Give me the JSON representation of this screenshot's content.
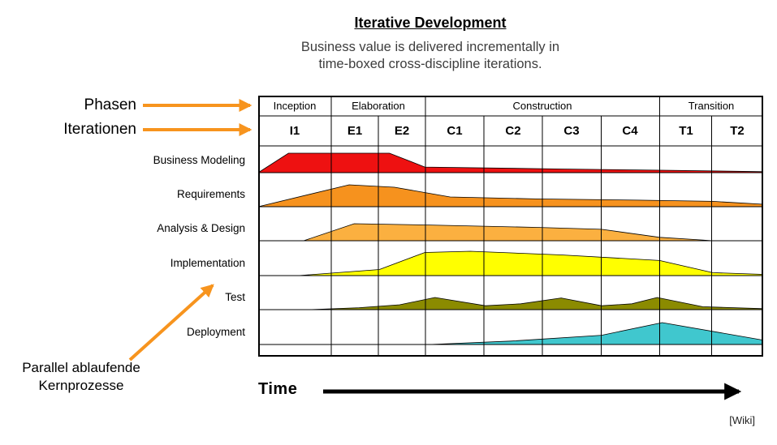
{
  "header": {
    "title": "Iterative Development",
    "subtitle_line1": "Business value is delivered incrementally in",
    "subtitle_line2": "time-boxed cross-discipline iterations."
  },
  "annotations": {
    "phases_label": "Phasen",
    "iterations_label": "Iterationen",
    "parallel_line1": "Parallel ablaufende",
    "parallel_line2": "Kernprozesse",
    "arrow_color": "#F7941E"
  },
  "footer": {
    "time_label": "Time",
    "credit": "[Wiki]"
  },
  "chart_data": {
    "type": "area",
    "title": "Iterative Development",
    "xlabel": "Time",
    "ylabel": "",
    "value_units": "relative effort (0 = none, 100 = max)",
    "column_boundaries": [
      0,
      0.145,
      0.238,
      0.331,
      0.447,
      0.563,
      0.679,
      0.795,
      0.898,
      1
    ],
    "phases": [
      {
        "label": "Inception",
        "start_col": 0,
        "end_col": 1
      },
      {
        "label": "Elaboration",
        "start_col": 1,
        "end_col": 3
      },
      {
        "label": "Construction",
        "start_col": 3,
        "end_col": 7
      },
      {
        "label": "Transition",
        "start_col": 7,
        "end_col": 9
      }
    ],
    "iterations": [
      "I1",
      "E1",
      "E2",
      "C1",
      "C2",
      "C3",
      "C4",
      "T1",
      "T2"
    ],
    "series": [
      {
        "name": "Business Modeling",
        "color": "#EE1111",
        "points": [
          [
            0,
            0
          ],
          [
            0.06,
            80
          ],
          [
            0.26,
            80
          ],
          [
            0.33,
            23
          ],
          [
            0.6,
            15
          ],
          [
            0.8,
            10
          ],
          [
            1,
            4
          ]
        ]
      },
      {
        "name": "Requirements",
        "color": "#F6921E",
        "points": [
          [
            0,
            0
          ],
          [
            0.18,
            90
          ],
          [
            0.27,
            80
          ],
          [
            0.38,
            40
          ],
          [
            0.55,
            32
          ],
          [
            0.75,
            27
          ],
          [
            0.9,
            22
          ],
          [
            1,
            10
          ]
        ]
      },
      {
        "name": "Analysis & Design",
        "color": "#FBB040",
        "points": [
          [
            0.09,
            0
          ],
          [
            0.19,
            70
          ],
          [
            0.33,
            65
          ],
          [
            0.55,
            55
          ],
          [
            0.68,
            47
          ],
          [
            0.795,
            14
          ],
          [
            0.88,
            3
          ],
          [
            0.9,
            0
          ]
        ]
      },
      {
        "name": "Implementation",
        "color": "#FFFF00",
        "points": [
          [
            0.08,
            0
          ],
          [
            0.24,
            25
          ],
          [
            0.33,
            95
          ],
          [
            0.42,
            100
          ],
          [
            0.6,
            85
          ],
          [
            0.795,
            62
          ],
          [
            0.9,
            12
          ],
          [
            1,
            5
          ]
        ]
      },
      {
        "name": "Test",
        "color": "#8B8B00",
        "points": [
          [
            0.1,
            0
          ],
          [
            0.2,
            8
          ],
          [
            0.28,
            20
          ],
          [
            0.35,
            50
          ],
          [
            0.45,
            16
          ],
          [
            0.52,
            24
          ],
          [
            0.6,
            48
          ],
          [
            0.68,
            16
          ],
          [
            0.74,
            24
          ],
          [
            0.79,
            50
          ],
          [
            0.88,
            12
          ],
          [
            1,
            4
          ]
        ]
      },
      {
        "name": "Deployment",
        "color": "#40C7CE",
        "points": [
          [
            0.34,
            0
          ],
          [
            0.5,
            14
          ],
          [
            0.68,
            38
          ],
          [
            0.8,
            90
          ],
          [
            1,
            18
          ]
        ]
      }
    ]
  }
}
